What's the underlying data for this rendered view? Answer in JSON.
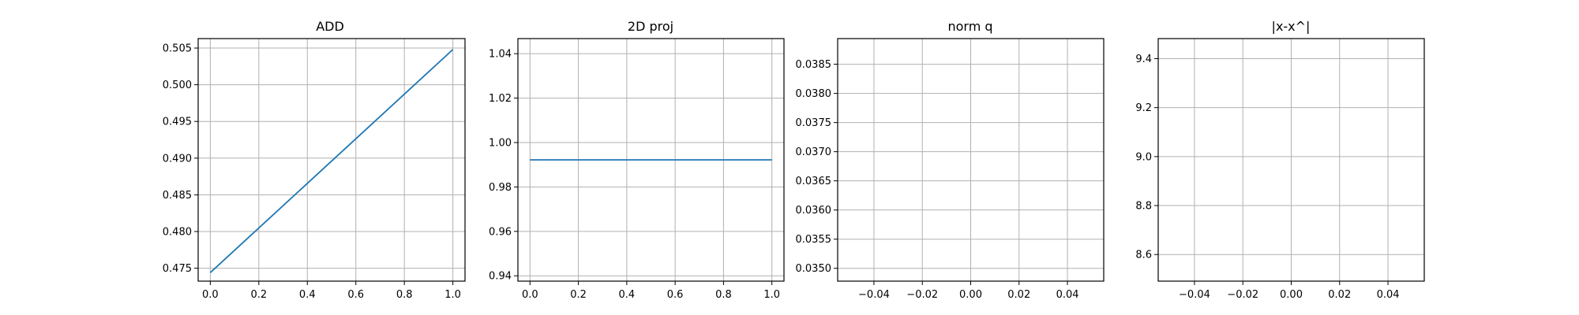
{
  "chart_data": [
    {
      "type": "line",
      "title": "ADD",
      "xlabel": "",
      "ylabel": "",
      "xlim": [
        -0.05,
        1.05
      ],
      "ylim": [
        0.47324,
        0.50629
      ],
      "grid": true,
      "x_ticks": [
        0.0,
        0.2,
        0.4,
        0.6,
        0.8,
        1.0
      ],
      "x_tick_labels": [
        "0.0",
        "0.2",
        "0.4",
        "0.6",
        "0.8",
        "1.0"
      ],
      "y_ticks": [
        0.475,
        0.48,
        0.485,
        0.49,
        0.495,
        0.5,
        0.505
      ],
      "y_tick_labels": [
        "0.475",
        "0.480",
        "0.485",
        "0.490",
        "0.495",
        "0.500",
        "0.505"
      ],
      "series": [
        {
          "color": "#1f77b4",
          "x": [
            0.0,
            1.0
          ],
          "y": [
            0.4744,
            0.5048
          ]
        }
      ]
    },
    {
      "type": "line",
      "title": "2D proj",
      "xlabel": "",
      "ylabel": "",
      "xlim": [
        -0.05,
        1.05
      ],
      "ylim": [
        0.9376,
        1.0468
      ],
      "grid": true,
      "x_ticks": [
        0.0,
        0.2,
        0.4,
        0.6,
        0.8,
        1.0
      ],
      "x_tick_labels": [
        "0.0",
        "0.2",
        "0.4",
        "0.6",
        "0.8",
        "1.0"
      ],
      "y_ticks": [
        0.94,
        0.96,
        0.98,
        1.0,
        1.02,
        1.04
      ],
      "y_tick_labels": [
        "0.94",
        "0.96",
        "0.98",
        "1.00",
        "1.02",
        "1.04"
      ],
      "series": [
        {
          "color": "#1f77b4",
          "x": [
            0.0,
            1.0
          ],
          "y": [
            0.9922,
            0.9922
          ]
        }
      ]
    },
    {
      "type": "line",
      "title": "norm q",
      "xlabel": "",
      "ylabel": "",
      "xlim": [
        -0.055,
        0.055
      ],
      "ylim": [
        0.03478,
        0.03894
      ],
      "grid": true,
      "x_ticks": [
        -0.04,
        -0.02,
        0.0,
        0.02,
        0.04
      ],
      "x_tick_labels": [
        "−0.04",
        "−0.02",
        "0.00",
        "0.02",
        "0.04"
      ],
      "y_ticks": [
        0.035,
        0.0355,
        0.036,
        0.0365,
        0.037,
        0.0375,
        0.038,
        0.0385
      ],
      "y_tick_labels": [
        "0.0350",
        "0.0355",
        "0.0360",
        "0.0365",
        "0.0370",
        "0.0375",
        "0.0380",
        "0.0385"
      ],
      "series": []
    },
    {
      "type": "line",
      "title": "|x-x^|",
      "xlabel": "",
      "ylabel": "",
      "xlim": [
        -0.055,
        0.055
      ],
      "ylim": [
        8.4913,
        9.482
      ],
      "grid": true,
      "x_ticks": [
        -0.04,
        -0.02,
        0.0,
        0.02,
        0.04
      ],
      "x_tick_labels": [
        "−0.04",
        "−0.02",
        "0.00",
        "0.02",
        "0.04"
      ],
      "y_ticks": [
        8.6,
        8.8,
        9.0,
        9.2,
        9.4
      ],
      "y_tick_labels": [
        "8.6",
        "8.8",
        "9.0",
        "9.2",
        "9.4"
      ],
      "series": []
    }
  ]
}
